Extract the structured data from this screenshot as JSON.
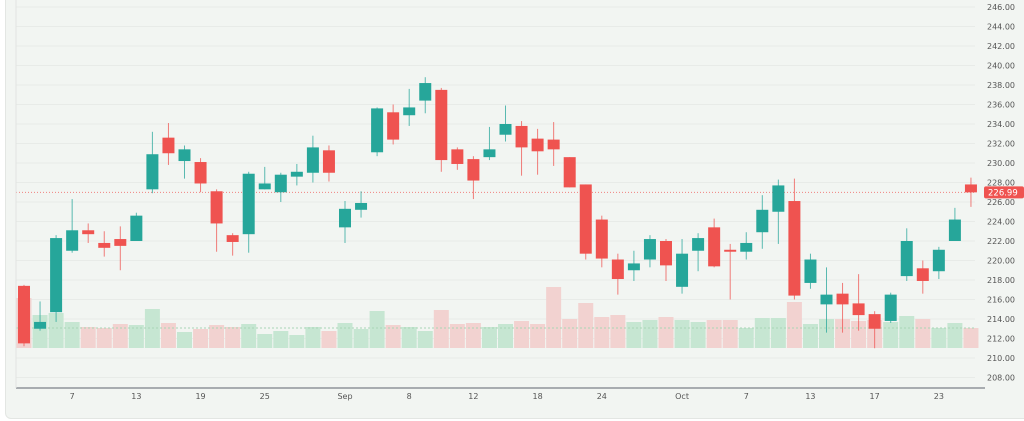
{
  "chart_data": {
    "type": "candlestick",
    "title": "",
    "xlabel": "",
    "ylabel": "",
    "ylim": [
      207,
      247
    ],
    "grid": true,
    "y_ticks": [
      "208.00",
      "210.00",
      "212.00",
      "214.00",
      "216.00",
      "218.00",
      "220.00",
      "222.00",
      "224.00",
      "226.00",
      "228.00",
      "230.00",
      "232.00",
      "234.00",
      "236.00",
      "238.00",
      "240.00",
      "242.00",
      "244.00",
      "246.00"
    ],
    "x_ticks": [
      {
        "label": "7",
        "candle": 3
      },
      {
        "label": "13",
        "candle": 7
      },
      {
        "label": "19",
        "candle": 11
      },
      {
        "label": "25",
        "candle": 15
      },
      {
        "label": "Sep",
        "candle": 20
      },
      {
        "label": "8",
        "candle": 24
      },
      {
        "label": "12",
        "candle": 28
      },
      {
        "label": "18",
        "candle": 32
      },
      {
        "label": "24",
        "candle": 36
      },
      {
        "label": "Oct",
        "candle": 41
      },
      {
        "label": "7",
        "candle": 45
      },
      {
        "label": "13",
        "candle": 49
      },
      {
        "label": "17",
        "candle": 53
      },
      {
        "label": "23",
        "candle": 57
      }
    ],
    "last_price": "226.99",
    "colors": {
      "up": "#26a69a",
      "down": "#ef5350",
      "up_volume": "#c6e6d2",
      "down_volume": "#f2d2d0",
      "background": "#f2f5f2"
    },
    "candles": [
      [
        217.4,
        217.5,
        211.2,
        211.5
      ],
      [
        213.0,
        215.8,
        212.8,
        213.7
      ],
      [
        214.7,
        222.6,
        213.7,
        222.3
      ],
      [
        221.0,
        226.3,
        220.8,
        223.1
      ],
      [
        223.1,
        223.8,
        221.8,
        222.7
      ],
      [
        221.8,
        223.0,
        220.4,
        221.3
      ],
      [
        222.2,
        223.5,
        219.0,
        221.5
      ],
      [
        222.0,
        224.9,
        222.0,
        224.6
      ],
      [
        227.3,
        233.2,
        226.9,
        230.9
      ],
      [
        232.6,
        234.1,
        229.8,
        231.0
      ],
      [
        230.2,
        231.8,
        228.4,
        231.4
      ],
      [
        230.1,
        230.5,
        227.0,
        227.9
      ],
      [
        227.1,
        227.3,
        220.9,
        223.8
      ],
      [
        222.6,
        222.8,
        220.5,
        221.9
      ],
      [
        222.7,
        229.1,
        220.8,
        228.9
      ],
      [
        227.3,
        229.6,
        227.3,
        227.9
      ],
      [
        227.0,
        229.0,
        226.0,
        228.8
      ],
      [
        228.6,
        229.9,
        227.7,
        229.1
      ],
      [
        229.0,
        232.8,
        228.0,
        231.6
      ],
      [
        231.3,
        231.8,
        228.1,
        229.0
      ],
      [
        223.4,
        226.1,
        221.8,
        225.3
      ],
      [
        225.2,
        227.1,
        224.4,
        225.9
      ],
      [
        231.1,
        235.7,
        230.7,
        235.6
      ],
      [
        235.2,
        236.0,
        231.9,
        232.4
      ],
      [
        234.9,
        237.6,
        233.8,
        235.7
      ],
      [
        236.4,
        238.8,
        235.1,
        238.2
      ],
      [
        237.5,
        237.7,
        229.1,
        230.3
      ],
      [
        231.4,
        231.6,
        229.3,
        229.9
      ],
      [
        230.4,
        230.7,
        226.3,
        228.2
      ],
      [
        230.6,
        233.7,
        230.3,
        231.4
      ],
      [
        232.9,
        235.9,
        232.2,
        234.0
      ],
      [
        233.8,
        234.3,
        228.7,
        231.6
      ],
      [
        232.5,
        233.5,
        228.8,
        231.2
      ],
      [
        232.4,
        234.2,
        229.7,
        231.4
      ],
      [
        230.6,
        230.6,
        227.5,
        227.5
      ],
      [
        227.8,
        227.8,
        220.1,
        220.7
      ],
      [
        224.2,
        224.6,
        219.3,
        220.2
      ],
      [
        220.1,
        220.7,
        216.5,
        218.1
      ],
      [
        219.0,
        221.0,
        217.9,
        219.7
      ],
      [
        220.1,
        222.6,
        219.3,
        222.2
      ],
      [
        222.0,
        222.2,
        217.9,
        219.5
      ],
      [
        217.3,
        222.2,
        216.6,
        220.7
      ],
      [
        221.0,
        222.8,
        218.9,
        222.3
      ],
      [
        223.4,
        224.3,
        219.3,
        219.4
      ],
      [
        221.1,
        221.7,
        216.0,
        220.9
      ],
      [
        220.9,
        222.9,
        220.1,
        221.8
      ],
      [
        222.9,
        226.7,
        221.2,
        225.2
      ],
      [
        225.0,
        228.3,
        221.7,
        227.7
      ],
      [
        226.1,
        228.4,
        216.0,
        216.4
      ],
      [
        217.7,
        220.7,
        217.1,
        220.1
      ],
      [
        215.5,
        219.3,
        212.6,
        216.5
      ],
      [
        216.6,
        217.7,
        212.6,
        215.5
      ],
      [
        215.6,
        218.6,
        212.8,
        214.4
      ],
      [
        214.5,
        214.8,
        211.0,
        213.0
      ],
      [
        213.8,
        216.7,
        213.6,
        216.5
      ],
      [
        218.4,
        223.3,
        217.9,
        222.0
      ],
      [
        219.2,
        220.0,
        216.6,
        217.9
      ],
      [
        218.9,
        221.4,
        218.1,
        221.1
      ],
      [
        222.0,
        225.4,
        222.0,
        224.2
      ],
      [
        227.8,
        228.5,
        225.5,
        226.99
      ]
    ],
    "candle_fields": [
      "open",
      "high",
      "low",
      "close"
    ],
    "volume_relative": [
      50,
      33,
      35,
      26,
      21,
      20,
      24,
      23,
      39,
      25,
      16,
      19,
      23,
      21,
      24,
      14,
      17,
      13,
      21,
      17,
      25,
      19,
      37,
      23,
      21,
      17,
      38,
      24,
      25,
      21,
      24,
      27,
      24,
      61,
      29,
      45,
      31,
      33,
      26,
      28,
      31,
      28,
      26,
      28,
      28,
      20,
      30,
      30,
      46,
      24,
      29,
      29,
      27,
      28,
      26,
      32,
      29,
      20,
      25,
      20
    ]
  }
}
